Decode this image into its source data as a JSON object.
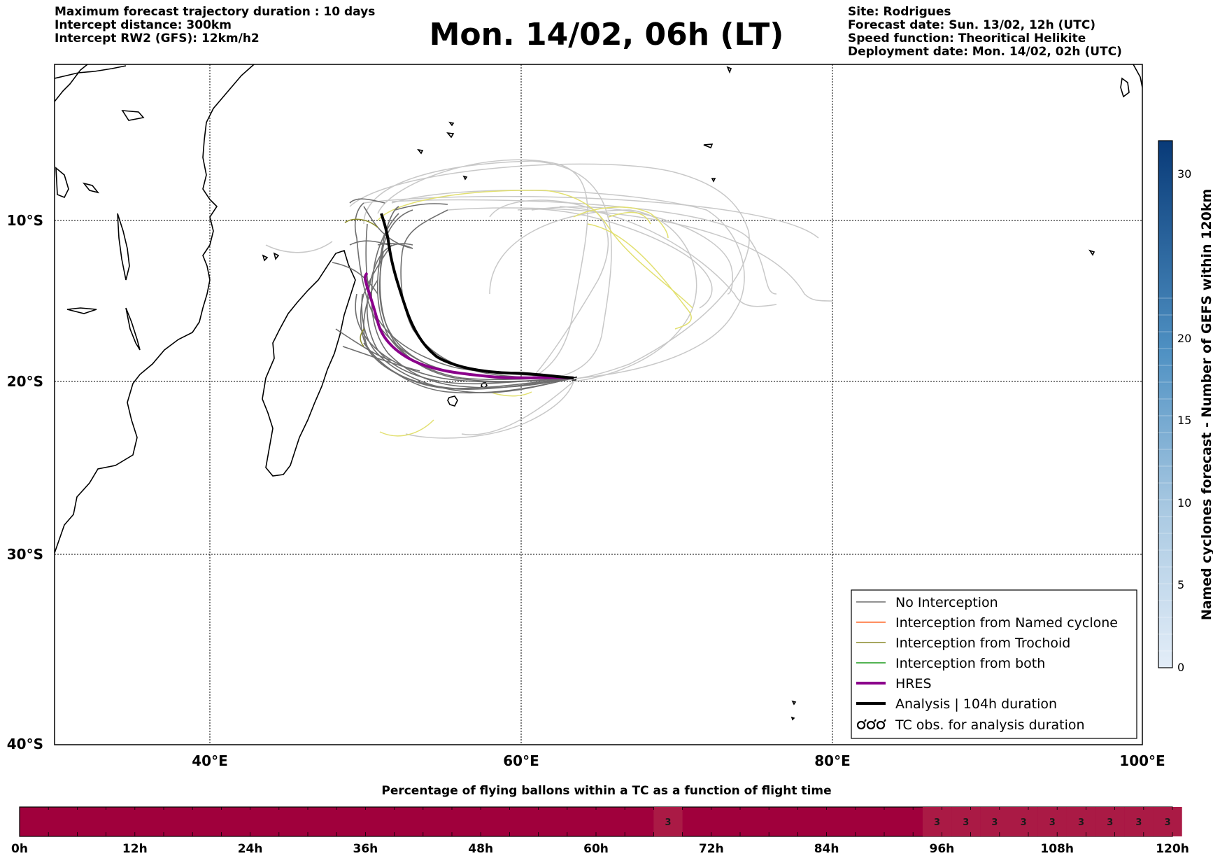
{
  "header_left": [
    "Maximum forecast trajectory duration : 10 days",
    "Intercept distance: 300km",
    "Intercept RW2 (GFS):  12km/h2"
  ],
  "header_right": [
    "Site: Rodrigues",
    "Forecast date: Sun. 13/02, 12h (UTC)",
    "Speed function: Theoritical Helikite",
    "Deployment date: Mon. 14/02, 02h (UTC)"
  ],
  "title": "Mon. 14/02, 06h (LT)",
  "map": {
    "lon_range": [
      30,
      100
    ],
    "lat_range": [
      -40,
      0
    ],
    "x_ticks": [
      "40°E",
      "60°E",
      "80°E",
      "100°E"
    ],
    "y_ticks": [
      "10°S",
      "20°S",
      "30°S",
      "40°S"
    ],
    "grid": true
  },
  "legend": {
    "items": [
      {
        "label": "No Interception",
        "color": "#6e6e6e"
      },
      {
        "label": "Interception from Named cyclone",
        "color": "#ff6a2b"
      },
      {
        "label": "Interception from Trochoid",
        "color": "#8a8a2a"
      },
      {
        "label": "Interception from both",
        "color": "#1a9a1a"
      },
      {
        "label": "HRES",
        "color": "#8b008b"
      },
      {
        "label": "Analysis | 104h duration",
        "color": "#000000"
      },
      {
        "label": "TC obs. for analysis duration",
        "color": "#000000"
      }
    ]
  },
  "colorbar": {
    "label": "Named cyclones forecast - Number of GEFS within 120km",
    "ticks": [
      "0",
      "5",
      "10",
      "15",
      "20",
      "30"
    ]
  },
  "timeline": {
    "title": "Percentage of flying ballons within a TC as a function of flight time",
    "ticks": [
      "0h",
      "12h",
      "24h",
      "36h",
      "48h",
      "60h",
      "72h",
      "84h",
      "96h",
      "108h",
      "120h"
    ],
    "marked_value": "3",
    "marked_hours": [
      66,
      94,
      97,
      100,
      103,
      106,
      109,
      112,
      115,
      118
    ],
    "base_color": "#a0003c",
    "marked_color": "#aa1a45"
  },
  "colors": {
    "ensemble": "#6e6e6e",
    "light_tracks": "#c8c8c8",
    "yellow_tracks": "#e2e070",
    "hres": "#8b008b",
    "analysis": "#000000"
  }
}
